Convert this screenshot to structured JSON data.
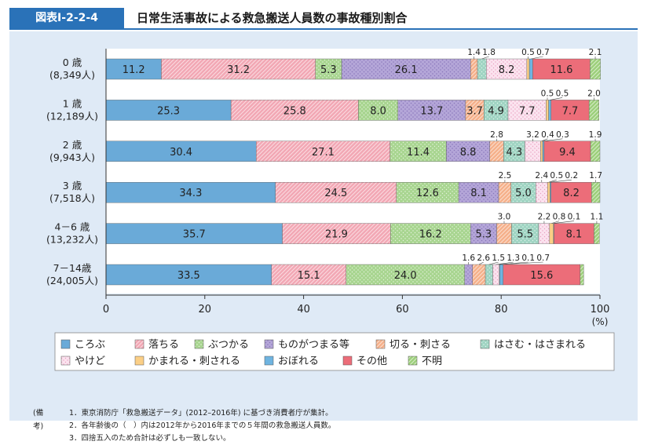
{
  "header": {
    "figure_label": "図表Ⅰ-2-2-4",
    "title": "日常生活事故による救急搬送人員数の事故種別割合"
  },
  "chart_data": {
    "type": "bar",
    "orientation": "horizontal",
    "stacked": true,
    "title": "日常生活事故による救急搬送人員数の事故種別割合",
    "categories": [
      {
        "label": "0 歳",
        "sub": "(8,349人)"
      },
      {
        "label": "1 歳",
        "sub": "(12,189人)"
      },
      {
        "label": "2 歳",
        "sub": "(9,943人)"
      },
      {
        "label": "3 歳",
        "sub": "(7,518人)"
      },
      {
        "label": "4－6 歳",
        "sub": "(13,232人)"
      },
      {
        "label": "7－14歳",
        "sub": "(24,005人)"
      }
    ],
    "series": [
      {
        "name": "ころぶ",
        "color": "#6aaad8",
        "pattern": "solid",
        "values": [
          11.2,
          25.3,
          30.4,
          34.3,
          35.7,
          33.5
        ]
      },
      {
        "name": "落ちる",
        "color": "#f2a7b4",
        "pattern": "hatch",
        "values": [
          31.2,
          25.8,
          27.1,
          24.5,
          21.9,
          15.1
        ]
      },
      {
        "name": "ぶつかる",
        "color": "#a8d590",
        "pattern": "dots",
        "values": [
          5.3,
          8.0,
          11.4,
          12.6,
          16.2,
          24.0
        ]
      },
      {
        "name": "ものがつまる等",
        "color": "#b4a6d8",
        "pattern": "dots-dense",
        "values": [
          26.1,
          13.7,
          8.8,
          8.1,
          5.3,
          1.6
        ]
      },
      {
        "name": "切る・刺さる",
        "color": "#f5b08a",
        "pattern": "hatch",
        "values": [
          1.4,
          3.7,
          2.8,
          2.5,
          3.0,
          2.6
        ]
      },
      {
        "name": "はさむ・はさまれる",
        "color": "#9fd4c2",
        "pattern": "dots",
        "values": [
          1.8,
          4.9,
          4.3,
          5.0,
          5.5,
          1.5
        ]
      },
      {
        "name": "やけど",
        "color": "#fbe3ef",
        "pattern": "dots-pink",
        "values": [
          8.2,
          7.7,
          3.2,
          2.4,
          2.2,
          1.3
        ]
      },
      {
        "name": "かまれる・刺される",
        "color": "#fbcf86",
        "pattern": "solid",
        "values": [
          0.5,
          0.5,
          0.4,
          0.5,
          0.8,
          0.1
        ]
      },
      {
        "name": "おぼれる",
        "color": "#6fb4e0",
        "pattern": "solid",
        "values": [
          0.7,
          0.5,
          0.3,
          0.2,
          0.1,
          0.7
        ]
      },
      {
        "name": "その他",
        "color": "#ec6d79",
        "pattern": "solid",
        "values": [
          11.6,
          7.7,
          9.4,
          8.2,
          8.1,
          15.6
        ]
      },
      {
        "name": "不明",
        "color": "#9ccf7a",
        "pattern": "hatch",
        "values": [
          2.1,
          2.0,
          1.9,
          1.7,
          1.1,
          0.7
        ]
      }
    ],
    "xlim": [
      0,
      100
    ],
    "xticks": [
      0,
      20,
      40,
      60,
      80,
      100
    ],
    "xlabel": "(%)",
    "grid": false,
    "legend_position": "bottom",
    "small_labels": [
      [
        {
          "text": "1.4",
          "series": 4
        },
        {
          "text": "1.8",
          "series": 5
        },
        {
          "text": "0.5",
          "series": 7
        },
        {
          "text": "0.7",
          "series": 8
        },
        {
          "text": "2.1",
          "series": 10
        }
      ],
      [
        {
          "text": "0.5",
          "series": 7
        },
        {
          "text": "0.5",
          "series": 8
        },
        {
          "text": "2.0",
          "series": 10
        }
      ],
      [
        {
          "text": "2.8",
          "series": 4
        },
        {
          "text": "3.2",
          "series": 6
        },
        {
          "text": "0.4",
          "series": 7
        },
        {
          "text": "0.3",
          "series": 8
        },
        {
          "text": "1.9",
          "series": 10
        }
      ],
      [
        {
          "text": "2.5",
          "series": 4
        },
        {
          "text": "2.4",
          "series": 6
        },
        {
          "text": "0.5",
          "series": 7
        },
        {
          "text": "0.2",
          "series": 8
        },
        {
          "text": "1.7",
          "series": 10
        }
      ],
      [
        {
          "text": "3.0",
          "series": 4
        },
        {
          "text": "2.2",
          "series": 6
        },
        {
          "text": "0.8",
          "series": 7
        },
        {
          "text": "0.1",
          "series": 8
        },
        {
          "text": "1.1",
          "series": 10
        }
      ],
      [
        {
          "text": "1.6",
          "series": 3
        },
        {
          "text": "2.6",
          "series": 4
        },
        {
          "text": "1.5",
          "series": 5
        },
        {
          "text": "1.3",
          "series": 6
        },
        {
          "text": "0.1",
          "series": 7
        },
        {
          "text": "0.7",
          "series": 8
        }
      ]
    ],
    "hidden_inbar": [
      [
        4,
        5,
        7,
        8,
        10
      ],
      [
        7,
        8,
        10
      ],
      [
        4,
        6,
        7,
        8,
        10
      ],
      [
        4,
        6,
        7,
        8,
        10
      ],
      [
        4,
        6,
        7,
        8,
        10
      ],
      [
        3,
        4,
        5,
        6,
        7,
        8,
        10
      ]
    ]
  },
  "notes": {
    "head": "(備考)",
    "lines": [
      "1．東京消防庁「救急搬送データ」(2012–2016年) に基づき消費者庁が集計。",
      "2．各年齢後の（　）内は2012年から2016年までの５年間の救急搬送人員数。",
      "3．四捨五入のため合計は必ずしも一致しない。"
    ]
  }
}
